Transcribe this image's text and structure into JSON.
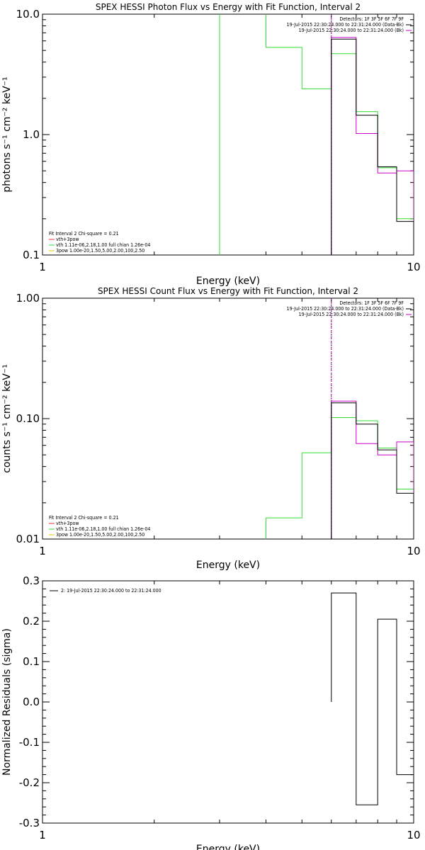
{
  "colors": {
    "axis": "#000000",
    "black": "#000000",
    "magenta": "#cc00cc",
    "green": "#33dd33",
    "yellow": "#ddcc00",
    "red": "#ee3333"
  },
  "chart_data": [
    {
      "type": "line",
      "step": true,
      "title": "SPEX HESSI Photon Flux vs Energy with Fit Function, Interval 2",
      "xlabel": "Energy (keV)",
      "ylabel": "photons s⁻¹ cm⁻² keV⁻¹",
      "xscale": "log",
      "yscale": "log",
      "xlim": [
        1,
        10
      ],
      "ylim": [
        0.1,
        10
      ],
      "xticks": [
        {
          "v": 1,
          "label": "1"
        },
        {
          "v": 10,
          "label": "10"
        }
      ],
      "yticks": [
        {
          "v": 0.1,
          "label": "0.1"
        },
        {
          "v": 1,
          "label": "1.0"
        },
        {
          "v": 10,
          "label": "10.0"
        }
      ],
      "vline": 6.0,
      "legend_top": [
        "Detectors: 1F 3F 5F 6F 7F 9F",
        "19-Jul-2015 22:30:24.000 to 22:31:24.000 (Data-Bk)",
        "19-Jul-2015 22:30:24.000 to 22:31:24.000 (Bk)"
      ],
      "legend_bottom": [
        "Fit Interval 2   Chi-square = 0.21",
        "vth+3pow",
        "vth 1.11e-06,2.18,1.00  full chian 1.26e-04",
        "3pow 1.00e-20,1.50,5.00,2.00,100,2.50"
      ],
      "edges": [
        3,
        4,
        5,
        6,
        7,
        8,
        9,
        10
      ],
      "series": [
        {
          "name": "19-Jul-2015 22:30:24.000 to 22:31:24.000 (Data-Bk)",
          "color": "black",
          "values": [
            null,
            null,
            null,
            6.2,
            1.45,
            0.54,
            0.19
          ]
        },
        {
          "name": "19-Jul-2015 22:30:24.000 to 22:31:24.000 (Bk)",
          "color": "magenta",
          "values": [
            null,
            null,
            null,
            6.4,
            1.02,
            0.48,
            0.5
          ]
        },
        {
          "name": "vth+3pow",
          "color": "green",
          "values": [
            20,
            5.3,
            2.4,
            4.7,
            1.55,
            0.53,
            0.2
          ]
        }
      ]
    },
    {
      "type": "line",
      "step": true,
      "title": "SPEX HESSI Count Flux vs Energy with Fit Function, Interval 2",
      "xlabel": "Energy (keV)",
      "ylabel": "counts s⁻¹ cm⁻² keV⁻¹",
      "xscale": "log",
      "yscale": "log",
      "xlim": [
        1,
        10
      ],
      "ylim": [
        0.01,
        1
      ],
      "xticks": [
        {
          "v": 1,
          "label": "1"
        },
        {
          "v": 10,
          "label": "10"
        }
      ],
      "yticks": [
        {
          "v": 0.01,
          "label": "0.01"
        },
        {
          "v": 0.1,
          "label": "0.10"
        },
        {
          "v": 1,
          "label": "1.00"
        }
      ],
      "vline": 6.0,
      "legend_top": [
        "Detectors: 1F 3F 5F 6F 7F 9F",
        "19-Jul-2015 22:30:24.000 to 22:31:24.000 (Data-Bk)",
        "19-Jul-2015 22:30:24.000 to 22:31:24.000 (Bk)"
      ],
      "legend_bottom": [
        "Fit Interval 2   Chi-square = 0.21",
        "vth+3pow",
        "vth 1.11e-06,2.18,1.00  full chian 1.26e-04",
        "3pow 1.00e-20,1.50,5.00,2.00,100,2.50"
      ],
      "edges": [
        4,
        5,
        6,
        7,
        8,
        9,
        10
      ],
      "series": [
        {
          "name": "19-Jul-2015 22:30:24.000 to 22:31:24.000 (Data-Bk)",
          "color": "black",
          "values": [
            null,
            null,
            0.135,
            0.09,
            0.055,
            0.024
          ]
        },
        {
          "name": "19-Jul-2015 22:30:24.000 to 22:31:24.000 (Bk)",
          "color": "magenta",
          "values": [
            null,
            null,
            0.14,
            0.062,
            0.05,
            0.064
          ]
        },
        {
          "name": "vth+3pow",
          "color": "green",
          "values": [
            0.015,
            0.052,
            0.102,
            0.096,
            0.057,
            0.026
          ]
        }
      ]
    },
    {
      "type": "line",
      "step": true,
      "title": "",
      "xlabel": "Energy (keV)",
      "ylabel": "Normalized Residuals (sigma)",
      "xscale": "log",
      "yscale": "linear",
      "xlim": [
        1,
        10
      ],
      "ylim": [
        -0.3,
        0.3
      ],
      "xticks": [
        {
          "v": 1,
          "label": "1"
        },
        {
          "v": 10,
          "label": "10"
        }
      ],
      "yticks": [
        {
          "v": -0.3,
          "label": "-0.3"
        },
        {
          "v": -0.2,
          "label": "-0.2"
        },
        {
          "v": -0.1,
          "label": "-0.1"
        },
        {
          "v": 0,
          "label": "0.0"
        },
        {
          "v": 0.1,
          "label": "0.1"
        },
        {
          "v": 0.2,
          "label": "0.2"
        },
        {
          "v": 0.3,
          "label": "0.3"
        }
      ],
      "legend": [
        "2: 19-Jul-2015 22:30:24.000 to 22:31:24.000"
      ],
      "edges": [
        6,
        7,
        8,
        9,
        10
      ],
      "series": [
        {
          "name": "2: 19-Jul-2015 22:30:24.000 to 22:31:24.000",
          "color": "black",
          "values": [
            0.27,
            -0.255,
            0.205,
            -0.18
          ]
        }
      ]
    }
  ]
}
